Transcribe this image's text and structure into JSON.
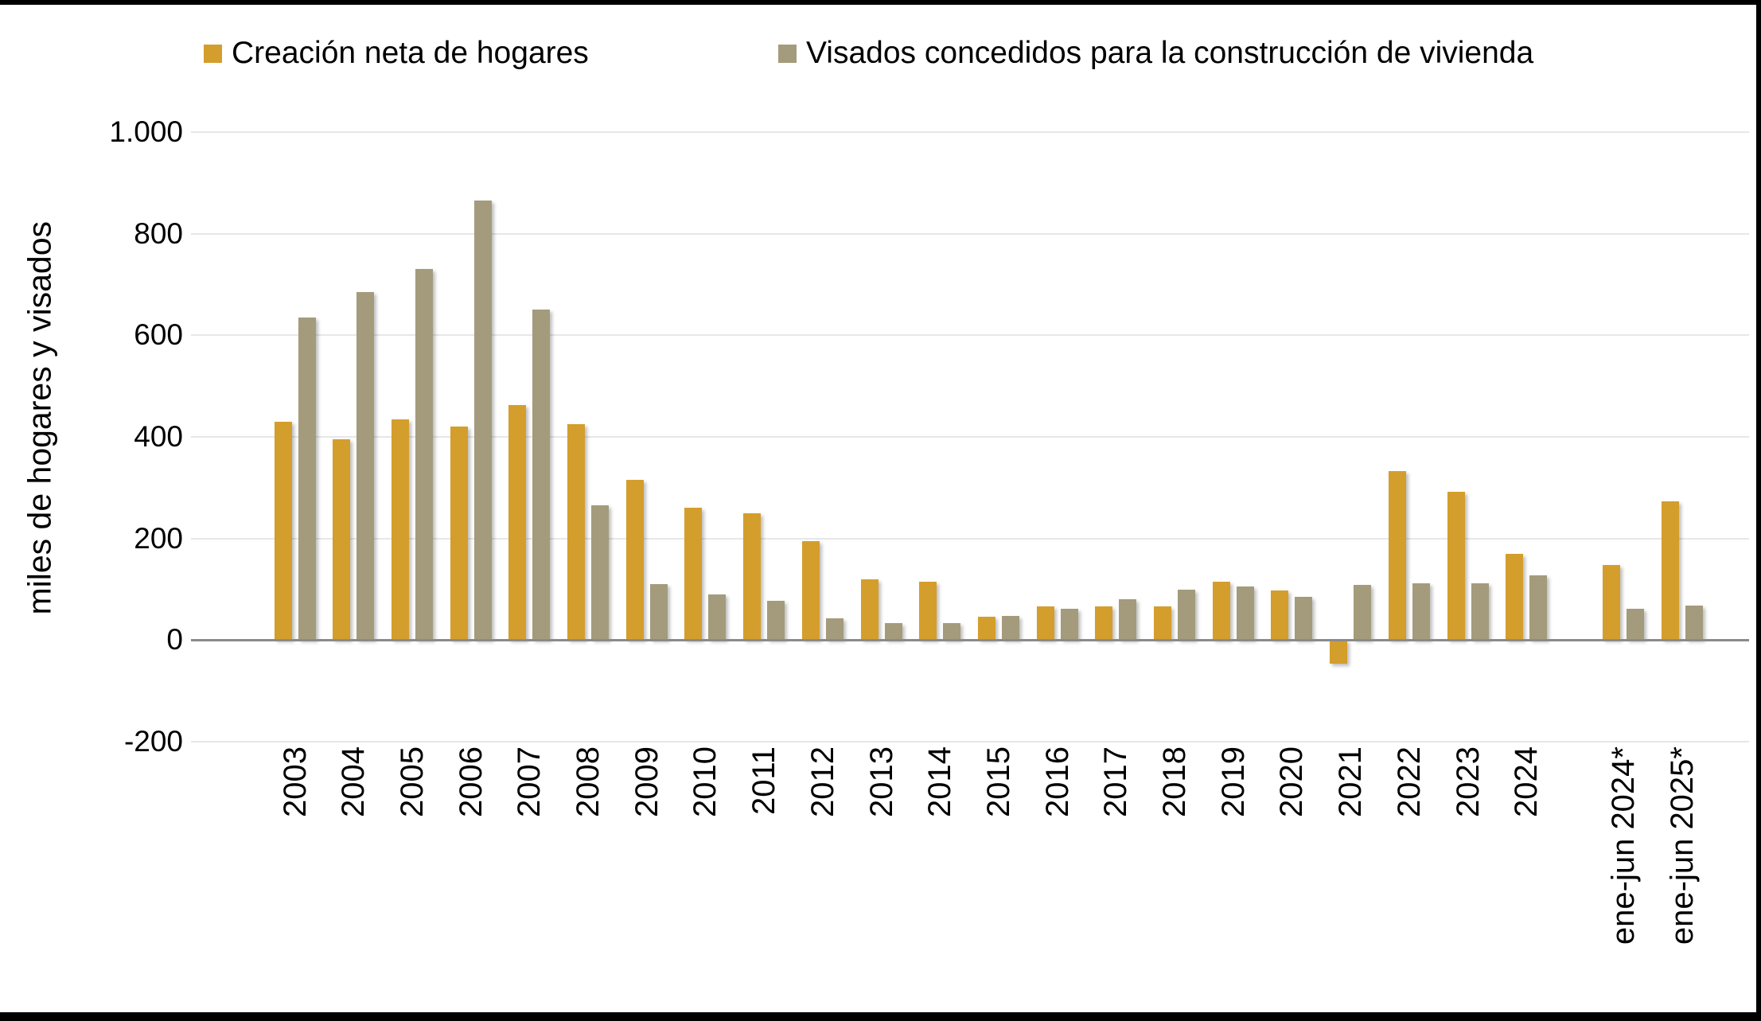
{
  "legend": {
    "items": [
      {
        "label": "Creación neta de hogares",
        "color": "#d49e2d"
      },
      {
        "label": "Visados concedidos para la construcción de vivienda",
        "color": "#a39b7b"
      }
    ]
  },
  "y_axis": {
    "title": "miles de hogares y visados",
    "tick_labels": [
      "1.000",
      "800",
      "600",
      "400",
      "200",
      "0",
      "-200"
    ],
    "tick_values": [
      1000,
      800,
      600,
      400,
      200,
      0,
      -200
    ]
  },
  "chart_data": {
    "type": "bar",
    "title": "",
    "xlabel": "",
    "ylabel": "miles de hogares y visados",
    "ylim": [
      -200,
      1000
    ],
    "grid": true,
    "legend_position": "top",
    "categories": [
      "2003",
      "2004",
      "2005",
      "2006",
      "2007",
      "2008",
      "2009",
      "2010",
      "2011",
      "2012",
      "2013",
      "2014",
      "2015",
      "2016",
      "2017",
      "2018",
      "2019",
      "2020",
      "2021",
      "2022",
      "2023",
      "2024",
      "ene-jun 2024*",
      "ene-jun 2025*"
    ],
    "series": [
      {
        "name": "Creación neta de hogares",
        "color": "#d49e2d",
        "values": [
          430,
          395,
          435,
          420,
          462,
          425,
          315,
          260,
          250,
          195,
          120,
          115,
          46,
          67,
          67,
          67,
          115,
          97,
          -47,
          333,
          292,
          169,
          147,
          273
        ]
      },
      {
        "name": "Visados concedidos para la construcción de vivienda",
        "color": "#a39b7b",
        "values": [
          635,
          685,
          730,
          865,
          650,
          265,
          110,
          90,
          77,
          43,
          34,
          33,
          48,
          62,
          80,
          100,
          106,
          85,
          108,
          112,
          112,
          128,
          62,
          68
        ]
      }
    ]
  }
}
